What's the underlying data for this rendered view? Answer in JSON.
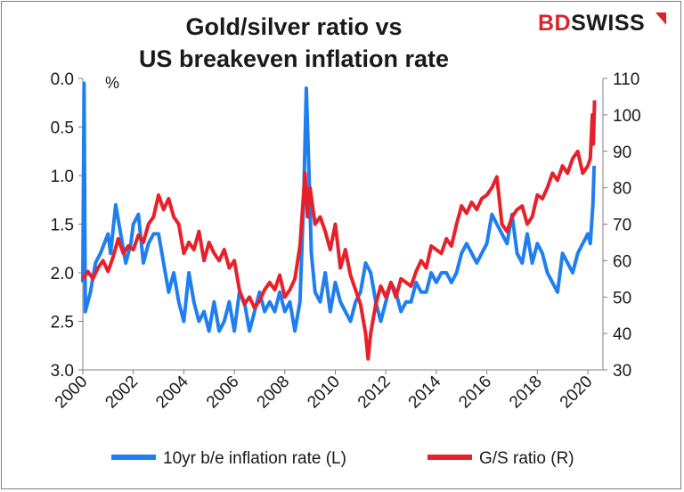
{
  "chart_data": {
    "type": "line",
    "title_line1": "Gold/silver ratio vs",
    "title_line2": "US breakeven inflation rate",
    "brand_bd": "BD",
    "brand_swiss": "SWISS",
    "y_left_unit": "%",
    "y_left": {
      "ticks": [
        "0.0",
        "0.5",
        "1.0",
        "1.5",
        "2.0",
        "2.5",
        "3.0"
      ],
      "range": [
        0,
        3
      ],
      "inverted": true
    },
    "y_right": {
      "ticks": [
        "30",
        "40",
        "50",
        "60",
        "70",
        "80",
        "90",
        "100",
        "110"
      ],
      "range": [
        30,
        110
      ]
    },
    "x_ticks": [
      "2000",
      "2002",
      "2004",
      "2006",
      "2008",
      "2010",
      "2012",
      "2014",
      "2016",
      "2018",
      "2020"
    ],
    "x_range": [
      2000,
      2020.6
    ],
    "series": [
      {
        "name": "10yr b/e inflation rate (L)",
        "color": "#1f7ff0",
        "axis": "left",
        "x": [
          2000.0,
          2000.05,
          2000.1,
          2000.3,
          2000.5,
          2000.7,
          2001.0,
          2001.1,
          2001.3,
          2001.5,
          2001.7,
          2001.9,
          2002.0,
          2002.2,
          2002.4,
          2002.6,
          2002.8,
          2003.0,
          2003.2,
          2003.4,
          2003.6,
          2003.8,
          2004.0,
          2004.2,
          2004.4,
          2004.6,
          2004.8,
          2005.0,
          2005.2,
          2005.4,
          2005.6,
          2005.8,
          2006.0,
          2006.2,
          2006.4,
          2006.6,
          2006.8,
          2007.0,
          2007.2,
          2007.4,
          2007.6,
          2007.8,
          2008.0,
          2008.2,
          2008.4,
          2008.6,
          2008.75,
          2008.85,
          2008.95,
          2009.05,
          2009.2,
          2009.4,
          2009.6,
          2009.8,
          2010.0,
          2010.2,
          2010.4,
          2010.6,
          2010.8,
          2011.0,
          2011.2,
          2011.4,
          2011.6,
          2011.8,
          2012.0,
          2012.2,
          2012.4,
          2012.6,
          2012.8,
          2013.0,
          2013.2,
          2013.4,
          2013.6,
          2013.8,
          2014.0,
          2014.2,
          2014.4,
          2014.6,
          2014.8,
          2015.0,
          2015.2,
          2015.4,
          2015.6,
          2015.8,
          2016.0,
          2016.2,
          2016.4,
          2016.6,
          2016.8,
          2017.0,
          2017.2,
          2017.4,
          2017.6,
          2017.8,
          2018.0,
          2018.2,
          2018.4,
          2018.6,
          2018.8,
          2019.0,
          2019.2,
          2019.4,
          2019.6,
          2019.8,
          2020.0,
          2020.1,
          2020.2,
          2020.25
        ],
        "values": [
          2.1,
          0.05,
          2.4,
          2.2,
          1.9,
          1.8,
          1.6,
          1.8,
          1.3,
          1.6,
          1.9,
          1.7,
          1.5,
          1.4,
          1.9,
          1.7,
          1.6,
          1.6,
          1.9,
          2.2,
          2.0,
          2.3,
          2.5,
          2.0,
          2.3,
          2.5,
          2.4,
          2.6,
          2.3,
          2.6,
          2.5,
          2.3,
          2.6,
          2.2,
          2.3,
          2.6,
          2.4,
          2.2,
          2.4,
          2.3,
          2.4,
          2.2,
          2.4,
          2.3,
          2.6,
          2.3,
          1.2,
          0.1,
          0.9,
          1.8,
          2.2,
          2.3,
          2.0,
          2.4,
          2.1,
          2.3,
          2.4,
          2.5,
          2.3,
          2.2,
          1.9,
          2.0,
          2.3,
          2.5,
          2.3,
          2.1,
          2.2,
          2.4,
          2.3,
          2.3,
          2.1,
          2.2,
          2.2,
          2.0,
          2.1,
          2.0,
          2.0,
          2.1,
          2.0,
          1.8,
          1.7,
          1.8,
          1.9,
          1.8,
          1.7,
          1.4,
          1.5,
          1.6,
          1.7,
          1.4,
          1.8,
          1.9,
          1.6,
          1.9,
          1.7,
          1.8,
          2.0,
          2.1,
          2.2,
          1.8,
          1.9,
          2.0,
          1.8,
          1.7,
          1.6,
          1.7,
          1.3,
          0.9
        ]
      },
      {
        "name": "G/S ratio (R)",
        "color": "#e8202a",
        "axis": "right",
        "x": [
          2000.0,
          2000.2,
          2000.4,
          2000.6,
          2000.8,
          2001.0,
          2001.2,
          2001.4,
          2001.6,
          2001.8,
          2002.0,
          2002.2,
          2002.4,
          2002.6,
          2002.8,
          2003.0,
          2003.2,
          2003.4,
          2003.6,
          2003.8,
          2004.0,
          2004.2,
          2004.4,
          2004.6,
          2004.8,
          2005.0,
          2005.2,
          2005.4,
          2005.6,
          2005.8,
          2006.0,
          2006.2,
          2006.4,
          2006.6,
          2006.8,
          2007.0,
          2007.2,
          2007.4,
          2007.6,
          2007.8,
          2008.0,
          2008.2,
          2008.4,
          2008.6,
          2008.8,
          2008.9,
          2009.0,
          2009.2,
          2009.4,
          2009.6,
          2009.8,
          2010.0,
          2010.2,
          2010.4,
          2010.6,
          2010.8,
          2011.0,
          2011.2,
          2011.3,
          2011.4,
          2011.6,
          2011.8,
          2012.0,
          2012.2,
          2012.4,
          2012.6,
          2012.8,
          2013.0,
          2013.2,
          2013.4,
          2013.6,
          2013.8,
          2014.0,
          2014.2,
          2014.4,
          2014.6,
          2014.8,
          2015.0,
          2015.2,
          2015.4,
          2015.6,
          2015.8,
          2016.0,
          2016.2,
          2016.4,
          2016.6,
          2016.8,
          2017.0,
          2017.2,
          2017.4,
          2017.6,
          2017.8,
          2018.0,
          2018.2,
          2018.4,
          2018.6,
          2018.8,
          2019.0,
          2019.2,
          2019.4,
          2019.6,
          2019.8,
          2020.0,
          2020.1,
          2020.18,
          2020.22,
          2020.27
        ],
        "values": [
          55,
          57,
          55,
          58,
          60,
          57,
          61,
          66,
          62,
          64,
          63,
          67,
          65,
          70,
          72,
          78,
          74,
          77,
          72,
          70,
          62,
          65,
          63,
          68,
          60,
          65,
          62,
          60,
          63,
          58,
          60,
          52,
          48,
          50,
          47,
          49,
          52,
          54,
          52,
          56,
          50,
          52,
          55,
          64,
          84,
          72,
          80,
          70,
          72,
          68,
          63,
          70,
          58,
          63,
          56,
          52,
          48,
          40,
          33,
          40,
          48,
          53,
          50,
          54,
          50,
          55,
          54,
          53,
          57,
          60,
          58,
          64,
          63,
          62,
          66,
          64,
          70,
          75,
          73,
          76,
          74,
          77,
          78,
          80,
          83,
          70,
          68,
          72,
          74,
          75,
          70,
          72,
          78,
          77,
          80,
          84,
          82,
          86,
          84,
          88,
          90,
          84,
          86,
          88,
          100,
          92,
          104
        ]
      }
    ],
    "legend": {
      "placement": "bottom"
    }
  }
}
